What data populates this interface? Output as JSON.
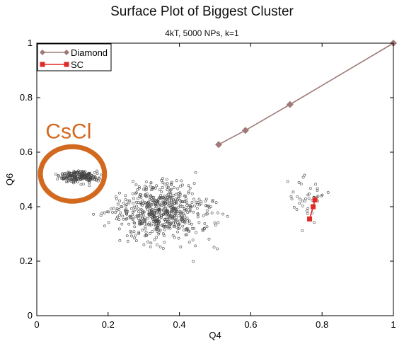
{
  "chart_data": {
    "type": "scatter",
    "title": "Surface Plot of Biggest Cluster",
    "subtitle": "4kT, 5000 NPs, k=1",
    "xlabel": "Q4",
    "ylabel": "Q6",
    "xlim": [
      0,
      1
    ],
    "ylim": [
      0,
      1
    ],
    "x_ticks": [
      "0",
      "0.2",
      "0.4",
      "0.6",
      "0.8",
      "1"
    ],
    "y_ticks": [
      "0",
      "0.2",
      "0.4",
      "0.6",
      "0.8",
      "1"
    ],
    "grid": false,
    "legend_position": "top-left",
    "annotation": {
      "text": "CsCl",
      "color": "#d2691e",
      "center": [
        0.1,
        0.52
      ],
      "radius": [
        0.09,
        0.1
      ]
    },
    "series": [
      {
        "name": "Diamond",
        "kind": "line-marker",
        "marker": "diamond",
        "color": "#a07a78",
        "x": [
          0.51,
          0.585,
          0.71,
          1.0
        ],
        "y": [
          0.628,
          0.68,
          0.775,
          1.0
        ]
      },
      {
        "name": "SC",
        "kind": "line-marker",
        "marker": "square",
        "color": "#e02a24",
        "x": [
          0.765,
          0.775,
          0.78
        ],
        "y": [
          0.355,
          0.4,
          0.425
        ]
      }
    ],
    "cloud": {
      "color": "#444444",
      "clusters": [
        {
          "center": [
            0.35,
            0.38
          ],
          "spread": [
            0.11,
            0.085
          ],
          "count": 620
        },
        {
          "center": [
            0.12,
            0.51
          ],
          "spread": [
            0.045,
            0.018
          ],
          "count": 220
        },
        {
          "center": [
            0.75,
            0.45
          ],
          "spread": [
            0.05,
            0.08
          ],
          "count": 40
        }
      ]
    }
  }
}
